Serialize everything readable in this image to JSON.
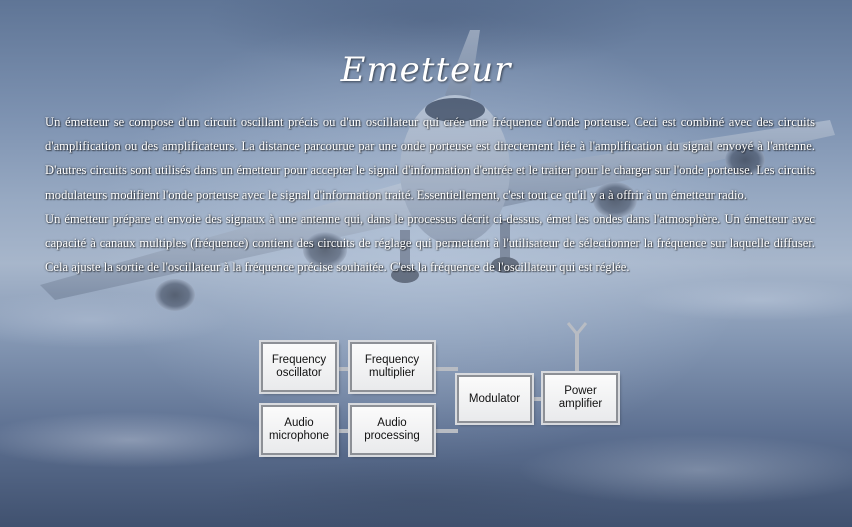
{
  "page": {
    "title": "Emetteur",
    "paragraphs": [
      "Un émetteur se compose d'un circuit oscillant précis ou d'un oscillateur qui crée une fréquence d'onde porteuse. Ceci est combiné avec des circuits d'amplification ou des amplificateurs. La distance parcourue par une onde porteuse est directement liée à l'amplification du signal envoyé à l'antenne. D'autres circuits sont utilisés dans un émetteur pour accepter le signal d'information d'entrée et le traiter pour le charger sur l'onde porteuse. Les circuits modulateurs modifient l'onde porteuse avec le signal d'information traité. Essentiellement, c'est tout ce qu'il y a à offrir à un émetteur radio.",
      "Un émetteur prépare et envoie des signaux à une antenne qui, dans le processus décrit ci-dessus, émet les ondes dans l'atmosphère. Un émetteur avec capacité à canaux multiples (fréquence) contient des circuits de réglage qui permettent à l'utilisateur de sélectionner la fréquence sur laquelle diffuser. Cela ajuste la sortie de l'oscillateur à la fréquence précise souhaitée. C'est la fréquence de l'oscillateur qui est réglée."
    ]
  },
  "diagram": {
    "blocks": {
      "frequency_oscillator": "Frequency\noscillator",
      "frequency_multiplier": "Frequency\nmultiplier",
      "audio_microphone": "Audio\nmicrophone",
      "audio_processing": "Audio\nprocessing",
      "modulator": "Modulator",
      "power_amplifier": "Power\namplifier"
    }
  },
  "colors": {
    "text": "#ffffff",
    "block_border": "#8d9096",
    "wire": "#b8bcc3"
  },
  "icons": [
    "antenna-icon"
  ]
}
